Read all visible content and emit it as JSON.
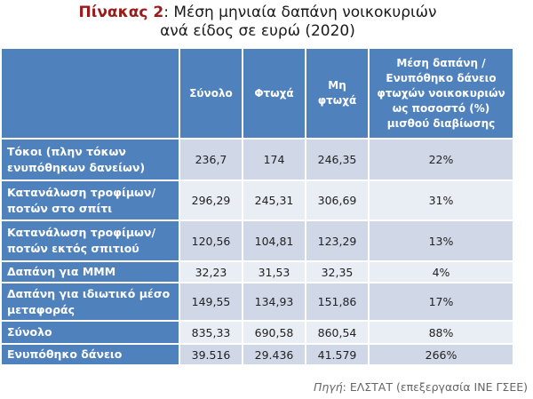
{
  "title": {
    "label": "Πίνακας 2",
    "line1": ": Μέση μηνιαία δαπάνη νοικοκυριών",
    "line2": "ανά είδος σε ευρώ (2020)",
    "label_color": "#9b1b1b"
  },
  "table": {
    "headers": [
      "",
      "Σύνολο",
      "Φτωχά",
      "Μη φτωχά",
      "Μέση δαπάνη / Ενυπόθηκο δάνειο φτωχών νοικοκυριών ως ποσοστό (%) μισθού διαβίωσης"
    ],
    "rows": [
      {
        "label": "Τόκοι (πλην τόκων ενυπόθηκων δανείων)",
        "values": [
          "236,7",
          "174",
          "246,35",
          "22%"
        ]
      },
      {
        "label": "Κατανάλωση τροφίμων/ ποτών στο σπίτι",
        "values": [
          "296,29",
          "245,31",
          "306,69",
          "31%"
        ]
      },
      {
        "label": "Κατανάλωση τροφίμων/ ποτών εκτός σπιτιού",
        "values": [
          "120,56",
          "104,81",
          "123,29",
          "13%"
        ]
      },
      {
        "label": "Δαπάνη για ΜΜΜ",
        "values": [
          "32,23",
          "31,53",
          "32,35",
          "4%"
        ]
      },
      {
        "label": "Δαπάνη για ιδιωτικό μέσο μεταφοράς",
        "values": [
          "149,55",
          "134,93",
          "151,86",
          "17%"
        ]
      },
      {
        "label": "Σύνολο",
        "values": [
          "835,33",
          "690,58",
          "860,54",
          "88%"
        ]
      },
      {
        "label": "Ενυπόθηκο δάνειο",
        "values": [
          "39.516",
          "29.436",
          "41.579",
          "266%"
        ]
      }
    ],
    "header_color": "#4f81bd"
  },
  "source": {
    "label": "Πηγή",
    "text": ": ΕΛΣΤΑΤ (επεξεργασία ΙΝΕ ΓΣΕΕ)"
  }
}
